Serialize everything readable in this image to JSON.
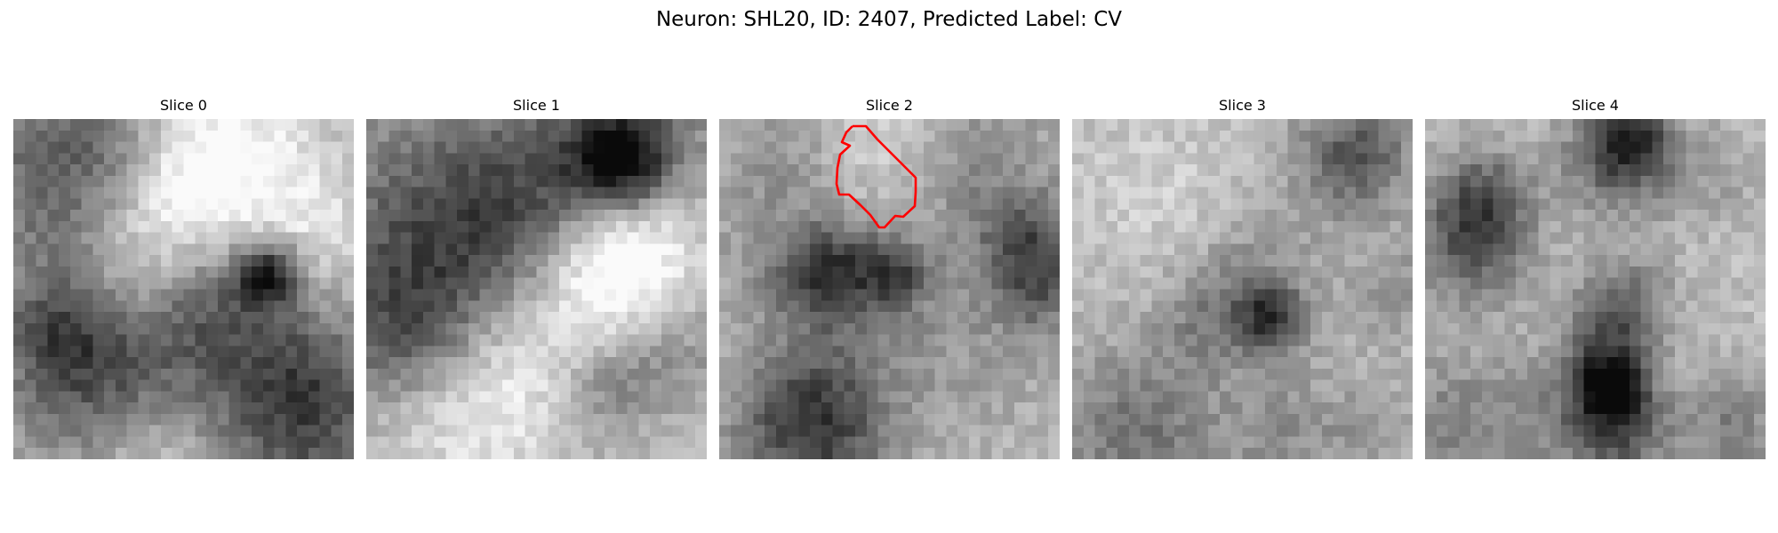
{
  "figure": {
    "title": "Neuron: SHL20, ID: 2407, Predicted Label: CV"
  },
  "panels": [
    {
      "title": "Slice 0",
      "has_mask": false
    },
    {
      "title": "Slice 1",
      "has_mask": false
    },
    {
      "title": "Slice 2",
      "has_mask": true
    },
    {
      "title": "Slice 3",
      "has_mask": false
    },
    {
      "title": "Slice 4",
      "has_mask": false
    }
  ],
  "colors": {
    "mask_outline": "#ff0000",
    "background": "#ffffff"
  }
}
